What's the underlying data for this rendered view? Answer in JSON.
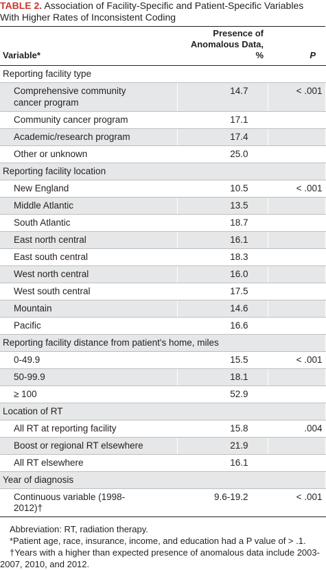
{
  "title": {
    "label": "TABLE 2.",
    "text": "Association of Facility-Specific and Patient-Specific Variables With Higher Rates of Inconsistent Coding"
  },
  "table": {
    "header": [
      "Variable*",
      "Presence of Anomalous Data, %",
      "P"
    ],
    "sections": [
      {
        "title": "Reporting facility type",
        "rows": [
          {
            "label": "Comprehensive community cancer program",
            "value": "14.7",
            "p": "< .001"
          },
          {
            "label": "Community cancer program",
            "value": "17.1"
          },
          {
            "label": "Academic/research program",
            "value": "17.4"
          },
          {
            "label": "Other or unknown",
            "value": "25.0"
          }
        ]
      },
      {
        "title": "Reporting facility location",
        "rows": [
          {
            "label": "New England",
            "value": "10.5",
            "p": "< .001"
          },
          {
            "label": "Middle Atlantic",
            "value": "13.5"
          },
          {
            "label": "South Atlantic",
            "value": "18.7"
          },
          {
            "label": "East north central",
            "value": "16.1"
          },
          {
            "label": "East south central",
            "value": "18.3"
          },
          {
            "label": "West north central",
            "value": "16.0"
          },
          {
            "label": "West south central",
            "value": "17.5"
          },
          {
            "label": "Mountain",
            "value": "14.6"
          },
          {
            "label": "Pacific",
            "value": "16.6"
          }
        ]
      },
      {
        "title": "Reporting facility distance from patient's home, miles",
        "rows": [
          {
            "label": "0-49.9",
            "value": "15.5",
            "p": "< .001"
          },
          {
            "label": "50-99.9",
            "value": "18.1"
          },
          {
            "label": "≥ 100",
            "value": "52.9"
          }
        ]
      },
      {
        "title": "Location of RT",
        "rows": [
          {
            "label": "All RT at reporting facility",
            "value": "15.8",
            "p": ".004"
          },
          {
            "label": "Boost or regional RT elsewhere",
            "value": "21.9"
          },
          {
            "label": "All RT elsewhere",
            "value": "16.1"
          }
        ]
      },
      {
        "title": "Year of diagnosis",
        "rows": [
          {
            "label": "Continuous variable (1998-2012)†",
            "value": "9.6-19.2",
            "p": "< .001"
          }
        ]
      }
    ]
  },
  "notes": [
    "Abbreviation: RT, radiation therapy.",
    "*Patient age, race, insurance, income, and education had a P value of > .1.",
    "†Years with a higher than expected presence of anomalous data include 2003-2007, 2010, and 2012."
  ]
}
